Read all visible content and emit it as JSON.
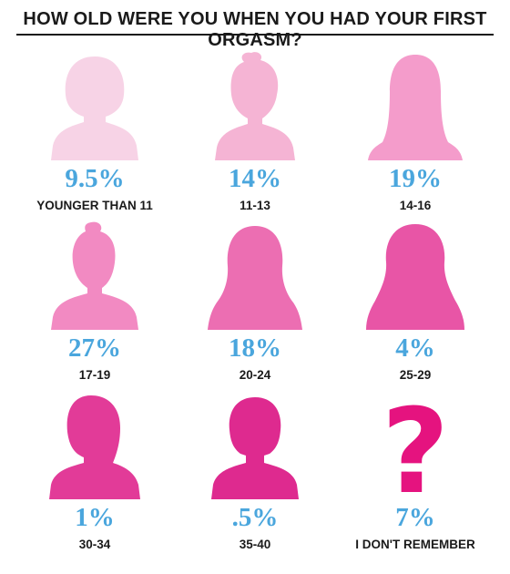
{
  "title": "HOW OLD WERE YOU WHEN YOU HAD YOUR FIRST ORGASM?",
  "chart_data": {
    "type": "pictogram",
    "title": "HOW OLD WERE YOU WHEN YOU HAD YOUR FIRST ORGASM?",
    "categories": [
      "YOUNGER THAN 11",
      "11-13",
      "14-16",
      "17-19",
      "20-24",
      "25-29",
      "30-34",
      "35-40",
      "I DON'T REMEMBER"
    ],
    "values": [
      9.5,
      14,
      19,
      27,
      18,
      4,
      1,
      0.5,
      7
    ],
    "value_labels": [
      "9.5%",
      "14%",
      "19%",
      "27%",
      "18%",
      "4%",
      "1%",
      ".5%",
      "7%"
    ],
    "icons": [
      "woman-bob-silhouette-icon",
      "woman-bun-silhouette-icon",
      "woman-long-hair-silhouette-icon",
      "woman-ponytail-silhouette-icon",
      "woman-shoulder-hair-silhouette-icon",
      "woman-wavy-hair-silhouette-icon",
      "woman-side-hair-silhouette-icon",
      "woman-short-bob-silhouette-icon",
      "question-mark-icon"
    ],
    "colors": [
      "#f7d3e6",
      "#f5b4d4",
      "#f49ccb",
      "#f28ac2",
      "#ec6eb2",
      "#e855a6",
      "#e23b98",
      "#de2a8f",
      "#e5137f"
    ],
    "value_color": "#4aa6dd"
  }
}
